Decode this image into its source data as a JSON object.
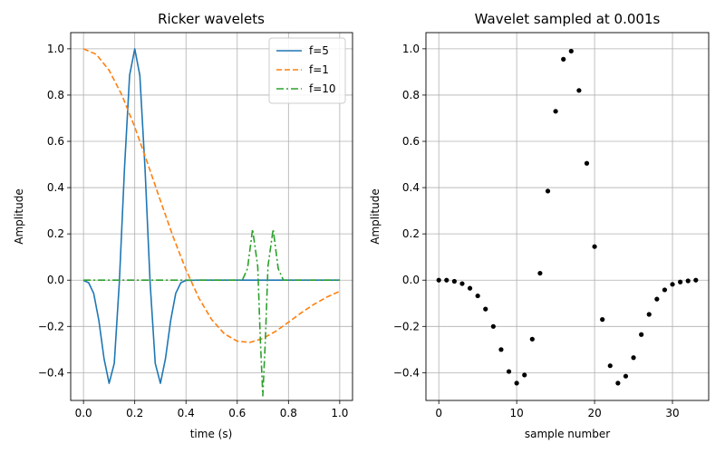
{
  "chart_data": [
    {
      "type": "line",
      "title": "Ricker wavelets",
      "xlabel": "time (s)",
      "ylabel": "Amplitude",
      "xlim": [
        -0.05,
        1.05
      ],
      "ylim": [
        -0.52,
        1.07
      ],
      "xticks": [
        0.0,
        0.2,
        0.4,
        0.6,
        0.8,
        1.0
      ],
      "xtick_labels": [
        "0.0",
        "0.2",
        "0.4",
        "0.6",
        "0.8",
        "1.0"
      ],
      "yticks": [
        -0.4,
        -0.2,
        0.0,
        0.2,
        0.4,
        0.6,
        0.8,
        1.0
      ],
      "ytick_labels": [
        "−0.4",
        "−0.2",
        "0.0",
        "0.2",
        "0.4",
        "0.6",
        "0.8",
        "1.0"
      ],
      "grid": true,
      "legend": "top-right",
      "series": [
        {
          "name": "f=5",
          "color": "#1f77b4",
          "style": "solid",
          "x": [
            0.0,
            0.02,
            0.04,
            0.06,
            0.08,
            0.1,
            0.12,
            0.14,
            0.16,
            0.18,
            0.2,
            0.22,
            0.24,
            0.26,
            0.28,
            0.3,
            0.32,
            0.34,
            0.36,
            0.38,
            0.4,
            0.45,
            0.5,
            0.6,
            0.7,
            0.8,
            0.9,
            1.0
          ],
          "y": [
            -0.001,
            -0.011,
            -0.057,
            -0.175,
            -0.339,
            -0.446,
            -0.36,
            -0.008,
            0.485,
            0.885,
            1.0,
            0.885,
            0.485,
            -0.008,
            -0.36,
            -0.446,
            -0.339,
            -0.175,
            -0.057,
            -0.011,
            -0.001,
            0.0,
            0.0,
            0.0,
            0.0,
            0.0,
            0.0,
            0.0
          ]
        },
        {
          "name": "f=1",
          "color": "#ff7f0e",
          "style": "dashed",
          "x": [
            0.0,
            0.05,
            0.1,
            0.15,
            0.2,
            0.25,
            0.3,
            0.35,
            0.4,
            0.45,
            0.5,
            0.55,
            0.6,
            0.65,
            0.7,
            0.75,
            0.8,
            0.85,
            0.9,
            0.95,
            1.0
          ],
          "y": [
            1.0,
            0.976,
            0.907,
            0.8,
            0.662,
            0.506,
            0.344,
            0.187,
            0.045,
            -0.077,
            -0.17,
            -0.232,
            -0.264,
            -0.269,
            -0.252,
            -0.221,
            -0.182,
            -0.141,
            -0.104,
            -0.073,
            -0.048
          ]
        },
        {
          "name": "f=10",
          "color": "#2ca02c",
          "style": "dashdot",
          "x": [
            0.0,
            0.2,
            0.4,
            0.6,
            0.62,
            0.64,
            0.66,
            0.68,
            0.69,
            0.7,
            0.71,
            0.72,
            0.74,
            0.76,
            0.78,
            0.8,
            0.9,
            1.0
          ],
          "y": [
            0.0,
            0.0,
            0.0,
            0.0,
            0.0,
            0.05,
            0.22,
            0.06,
            -0.25,
            -0.5,
            -0.25,
            0.06,
            0.22,
            0.05,
            0.0,
            0.0,
            0.0,
            0.0
          ]
        }
      ]
    },
    {
      "type": "scatter",
      "title": "Wavelet sampled at 0.001s",
      "xlabel": "sample number",
      "ylabel": "Amplitude",
      "xlim": [
        -1.65,
        34.65
      ],
      "ylim": [
        -0.52,
        1.07
      ],
      "xticks": [
        0,
        10,
        20,
        30
      ],
      "xtick_labels": [
        "0",
        "10",
        "20",
        "30"
      ],
      "yticks": [
        -0.4,
        -0.2,
        0.0,
        0.2,
        0.4,
        0.6,
        0.8,
        1.0
      ],
      "ytick_labels": [
        "−0.4",
        "−0.2",
        "0.0",
        "0.2",
        "0.4",
        "0.6",
        "0.8",
        "1.0"
      ],
      "grid": true,
      "series": [
        {
          "color": "#000000",
          "x": [
            0,
            1,
            2,
            3,
            4,
            5,
            6,
            7,
            8,
            9,
            10,
            11,
            12,
            13,
            14,
            15,
            16,
            17,
            18,
            19,
            20,
            21,
            22,
            23,
            24,
            25,
            26,
            27,
            28,
            29,
            30,
            31,
            32,
            33
          ],
          "y": [
            0.0,
            0.0,
            -0.005,
            -0.015,
            -0.035,
            -0.068,
            -0.125,
            -0.2,
            -0.3,
            -0.395,
            -0.445,
            -0.41,
            -0.255,
            0.03,
            0.385,
            0.73,
            0.955,
            0.99,
            0.82,
            0.505,
            0.145,
            -0.17,
            -0.37,
            -0.445,
            -0.415,
            -0.335,
            -0.235,
            -0.148,
            -0.082,
            -0.042,
            -0.018,
            -0.008,
            -0.003,
            0.0
          ]
        }
      ]
    }
  ]
}
